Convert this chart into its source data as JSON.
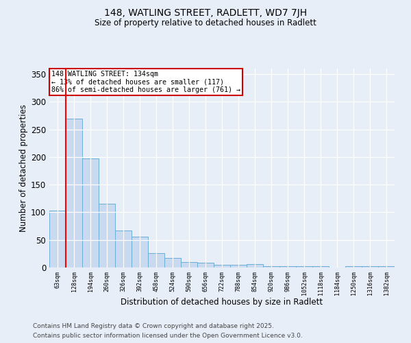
{
  "title1": "148, WATLING STREET, RADLETT, WD7 7JH",
  "title2": "Size of property relative to detached houses in Radlett",
  "xlabel": "Distribution of detached houses by size in Radlett",
  "ylabel": "Number of detached properties",
  "categories": [
    "63sqm",
    "128sqm",
    "194sqm",
    "260sqm",
    "326sqm",
    "392sqm",
    "458sqm",
    "524sqm",
    "590sqm",
    "656sqm",
    "722sqm",
    "788sqm",
    "854sqm",
    "920sqm",
    "986sqm",
    "1052sqm",
    "1118sqm",
    "1184sqm",
    "1250sqm",
    "1316sqm",
    "1382sqm"
  ],
  "values": [
    103,
    270,
    197,
    115,
    67,
    56,
    26,
    18,
    10,
    9,
    5,
    5,
    6,
    3,
    2,
    3,
    2,
    0,
    3,
    3,
    2
  ],
  "bar_color": "#c8d9f0",
  "bar_edge_color": "#6aaed6",
  "ylim": [
    0,
    360
  ],
  "yticks": [
    0,
    50,
    100,
    150,
    200,
    250,
    300,
    350
  ],
  "red_line_index": 1,
  "annotation_text": "148 WATLING STREET: 134sqm\n← 13% of detached houses are smaller (117)\n86% of semi-detached houses are larger (761) →",
  "annotation_box_color": "#ffffff",
  "annotation_box_edge": "#cc0000",
  "footer1": "Contains HM Land Registry data © Crown copyright and database right 2025.",
  "footer2": "Contains public sector information licensed under the Open Government Licence v3.0.",
  "bg_color": "#e8eef8",
  "plot_bg_color": "#e8eef8"
}
